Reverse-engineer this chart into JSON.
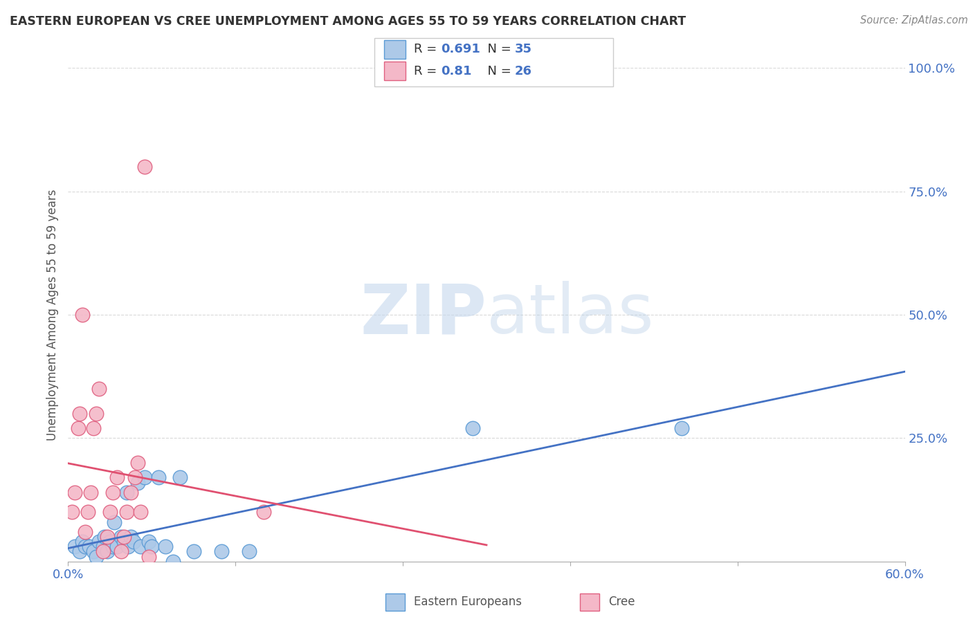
{
  "title": "EASTERN EUROPEAN VS CREE UNEMPLOYMENT AMONG AGES 55 TO 59 YEARS CORRELATION CHART",
  "source": "Source: ZipAtlas.com",
  "legend_ee_label": "Eastern Europeans",
  "legend_cree_label": "Cree",
  "ylabel": "Unemployment Among Ages 55 to 59 years",
  "xlim": [
    0.0,
    0.6
  ],
  "ylim": [
    0.0,
    1.0
  ],
  "eastern_european_R": 0.691,
  "eastern_european_N": 35,
  "cree_R": 0.81,
  "cree_N": 26,
  "eastern_european_color": "#adc9e8",
  "eastern_european_edge_color": "#5b9bd5",
  "eastern_european_line_color": "#4472c4",
  "cree_color": "#f4b8c8",
  "cree_edge_color": "#e06080",
  "cree_line_color": "#e05070",
  "watermark_zip": "ZIP",
  "watermark_atlas": "atlas",
  "background_color": "#ffffff",
  "grid_color": "#d9d9d9",
  "eastern_european_x": [
    0.005,
    0.008,
    0.01,
    0.012,
    0.015,
    0.018,
    0.02,
    0.022,
    0.025,
    0.026,
    0.028,
    0.03,
    0.032,
    0.033,
    0.035,
    0.038,
    0.04,
    0.042,
    0.043,
    0.045,
    0.047,
    0.05,
    0.052,
    0.055,
    0.058,
    0.06,
    0.065,
    0.07,
    0.075,
    0.08,
    0.09,
    0.11,
    0.13,
    0.29,
    0.44
  ],
  "eastern_european_y": [
    0.03,
    0.02,
    0.04,
    0.03,
    0.03,
    0.02,
    0.01,
    0.04,
    0.03,
    0.05,
    0.02,
    0.04,
    0.03,
    0.08,
    0.03,
    0.05,
    0.04,
    0.14,
    0.03,
    0.05,
    0.04,
    0.16,
    0.03,
    0.17,
    0.04,
    0.03,
    0.17,
    0.03,
    0.0,
    0.17,
    0.02,
    0.02,
    0.02,
    0.27,
    0.27
  ],
  "cree_x": [
    0.003,
    0.005,
    0.007,
    0.008,
    0.01,
    0.012,
    0.014,
    0.016,
    0.018,
    0.02,
    0.022,
    0.025,
    0.028,
    0.03,
    0.032,
    0.035,
    0.038,
    0.04,
    0.042,
    0.045,
    0.048,
    0.05,
    0.052,
    0.055,
    0.058,
    0.14
  ],
  "cree_y": [
    0.1,
    0.14,
    0.27,
    0.3,
    0.5,
    0.06,
    0.1,
    0.14,
    0.27,
    0.3,
    0.35,
    0.02,
    0.05,
    0.1,
    0.14,
    0.17,
    0.02,
    0.05,
    0.1,
    0.14,
    0.17,
    0.2,
    0.1,
    0.8,
    0.01,
    0.1
  ]
}
